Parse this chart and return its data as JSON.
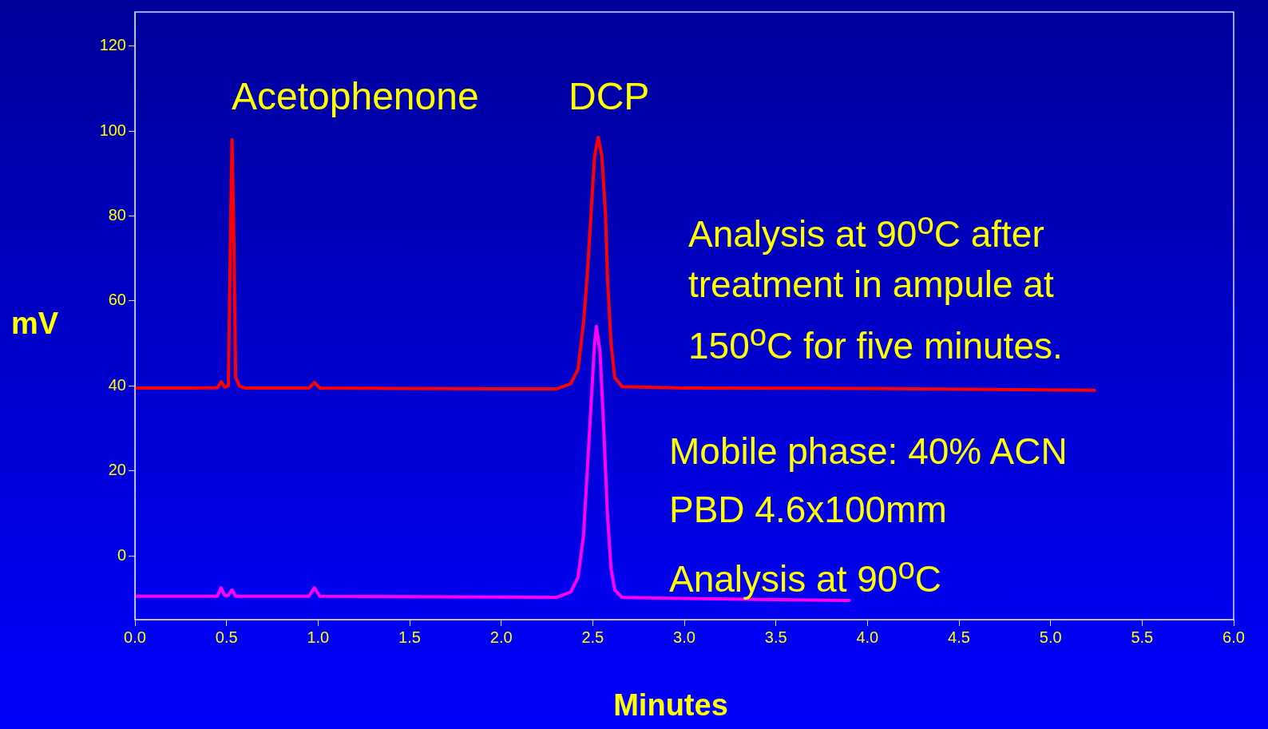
{
  "chart_data": {
    "type": "line",
    "xlabel": "Minutes",
    "ylabel": "mV",
    "xlim": [
      0,
      6
    ],
    "xticks": [
      {
        "value": 0,
        "label": "0.0"
      },
      {
        "value": 0.5,
        "label": "0.5"
      },
      {
        "value": 1,
        "label": "1.0"
      },
      {
        "value": 1.5,
        "label": "1.5"
      },
      {
        "value": 2,
        "label": "2.0"
      },
      {
        "value": 2.5,
        "label": "2.5"
      },
      {
        "value": 3,
        "label": "3.0"
      },
      {
        "value": 3.5,
        "label": "3.5"
      },
      {
        "value": 4,
        "label": "4.0"
      },
      {
        "value": 4.5,
        "label": "4.5"
      },
      {
        "value": 5,
        "label": "5.0"
      },
      {
        "value": 5.5,
        "label": "5.5"
      },
      {
        "value": 6,
        "label": "6.0"
      }
    ],
    "ylim": [
      -15,
      128
    ],
    "yticks": [
      0,
      20,
      40,
      60,
      80,
      100,
      120
    ],
    "grid": false,
    "legend": false,
    "marker": "none",
    "line_style": "solid",
    "series": [
      {
        "color": "#ff0000",
        "x": [
          0,
          0.3,
          0.45,
          0.47,
          0.49,
          0.51,
          0.52,
          0.53,
          0.54,
          0.55,
          0.57,
          0.6,
          0.95,
          0.98,
          1.01,
          2.0,
          2.3,
          2.38,
          2.42,
          2.45,
          2.47,
          2.49,
          2.51,
          2.53,
          2.55,
          2.57,
          2.58,
          2.6,
          2.62,
          2.66,
          3.0,
          4.0,
          5.24
        ],
        "values": [
          39.5,
          39.5,
          39.6,
          41,
          39.7,
          40,
          70,
          98,
          75,
          42,
          40,
          39.5,
          39.5,
          40.8,
          39.5,
          39.3,
          39.3,
          40.5,
          44,
          55,
          66,
          80,
          94,
          98.5,
          94,
          80,
          66,
          50,
          42,
          39.8,
          39.5,
          39.4,
          39
        ]
      },
      {
        "color": "#ff00ff",
        "x": [
          0,
          0.45,
          0.47,
          0.49,
          0.51,
          0.53,
          0.55,
          0.95,
          0.98,
          1.01,
          2.0,
          2.3,
          2.38,
          2.42,
          2.45,
          2.47,
          2.49,
          2.51,
          2.52,
          2.54,
          2.56,
          2.58,
          2.6,
          2.62,
          2.66,
          3.0,
          3.5,
          3.9
        ],
        "values": [
          -9.5,
          -9.5,
          -7.5,
          -9.3,
          -9.3,
          -8,
          -9.5,
          -9.5,
          -7.5,
          -9.5,
          -9.7,
          -9.8,
          -8.5,
          -5,
          5,
          20,
          35,
          50,
          54,
          48,
          30,
          10,
          -3,
          -8,
          -9.8,
          -10,
          -10.3,
          -10.5
        ]
      }
    ],
    "annotations": [
      "Acetophenone",
      "DCP",
      "Analysis at 90$^{o}$C after treatment in ampule at 150$^{o}$C for five minutes.",
      "Mobile phase: 40% ACN",
      "PBD 4.6x100mm",
      "Analysis at 90$^{o}$C"
    ]
  }
}
